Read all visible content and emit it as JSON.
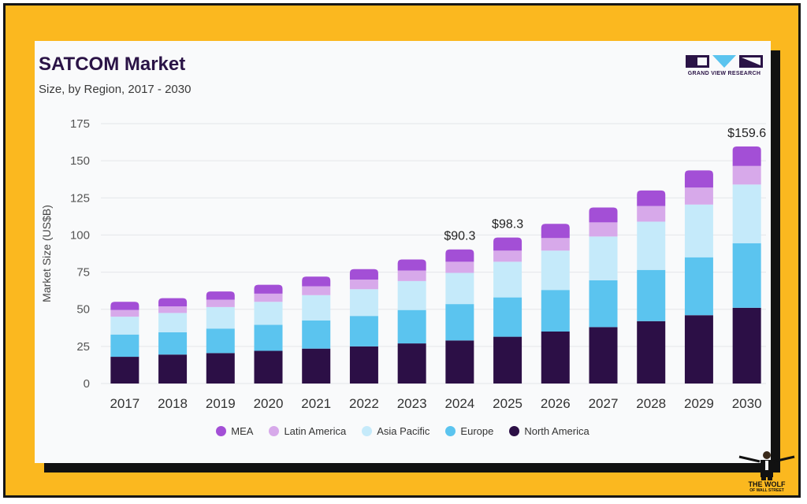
{
  "header": {
    "title": "SATCOM Market",
    "subtitle": "Size, by Region, 2017 - 2030"
  },
  "logo": {
    "text": "GRAND VIEW RESEARCH",
    "color": "#2a1346"
  },
  "watermark": {
    "title": "THE WOLF",
    "subtitle": "OF WALL STREET"
  },
  "chart_data": {
    "type": "bar",
    "stacked": true,
    "title": "SATCOM Market",
    "subtitle": "Size, by Region, 2017 - 2030",
    "xlabel": "",
    "ylabel": "Market Size (US$B)",
    "ylim": [
      0,
      175
    ],
    "yticks": [
      0,
      25,
      50,
      75,
      100,
      125,
      150,
      175
    ],
    "grid": true,
    "legend_position": "bottom",
    "categories": [
      "2017",
      "2018",
      "2019",
      "2020",
      "2021",
      "2022",
      "2023",
      "2024",
      "2025",
      "2026",
      "2027",
      "2028",
      "2029",
      "2030"
    ],
    "series": [
      {
        "name": "North America",
        "color": "#2c0f46",
        "values": [
          18,
          19.5,
          20.5,
          22,
          23.5,
          25,
          27,
          29,
          31.5,
          35,
          38,
          42,
          46,
          51
        ]
      },
      {
        "name": "Europe",
        "color": "#5bc4ef",
        "values": [
          15,
          15,
          16.5,
          17.5,
          19,
          20.5,
          22.5,
          24.5,
          26.5,
          28,
          31.5,
          34.5,
          39,
          43.5
        ]
      },
      {
        "name": "Asia Pacific",
        "color": "#c5eafa",
        "values": [
          12,
          13,
          14.5,
          15.5,
          17,
          18,
          19.5,
          21,
          24,
          26.5,
          29.5,
          32.5,
          35.5,
          39.5
        ]
      },
      {
        "name": "Latin America",
        "color": "#d7a9ea",
        "values": [
          4.5,
          4.5,
          5,
          5.5,
          6,
          6.5,
          7,
          7.5,
          7.5,
          8.5,
          9.5,
          10.5,
          11.5,
          12.5
        ]
      },
      {
        "name": "MEA",
        "color": "#a34fd6",
        "values": [
          5.5,
          5.5,
          5.5,
          6,
          6.5,
          7,
          7.5,
          8.3,
          8.8,
          9.5,
          10,
          10.5,
          11.5,
          13.1
        ]
      }
    ],
    "annotations": [
      {
        "category": "2024",
        "label": "$90.3",
        "value": 90.3
      },
      {
        "category": "2025",
        "label": "$98.3",
        "value": 98.3
      },
      {
        "category": "2030",
        "label": "$159.6",
        "value": 159.6
      }
    ]
  }
}
